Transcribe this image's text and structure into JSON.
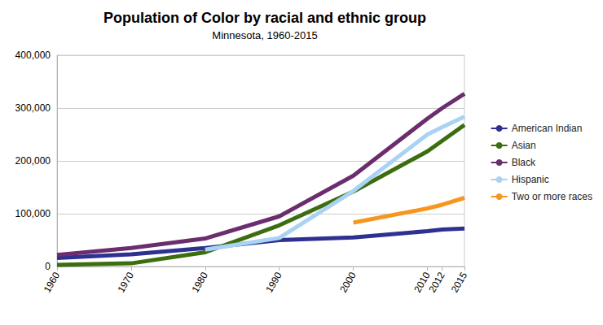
{
  "chart_data": {
    "type": "line",
    "title": "Population of Color by racial and ethnic group",
    "subtitle": "Minnesota, 1960-2015",
    "x": [
      1960,
      1970,
      1980,
      1990,
      2000,
      2010,
      2012,
      2015
    ],
    "xlim": [
      1960,
      2015
    ],
    "xticks": [
      1960,
      1970,
      1980,
      1990,
      2000,
      2010,
      2012,
      2015
    ],
    "ylim": [
      0,
      400000
    ],
    "yticks": [
      0,
      {
        "value": 100000,
        "label": "100,000"
      },
      {
        "value": 200000,
        "label": "200,000"
      },
      {
        "value": 300000,
        "label": "300,000"
      },
      {
        "value": 400000,
        "label": "400,000"
      }
    ],
    "grid": true,
    "legend": "right",
    "series": [
      {
        "name": "American Indian",
        "color": "#2e3192",
        "values": [
          16000,
          23000,
          35000,
          50000,
          55000,
          67000,
          70000,
          72000
        ]
      },
      {
        "name": "Asian",
        "color": "#3c6e0f",
        "values": [
          3000,
          6000,
          27000,
          78000,
          142000,
          218000,
          238000,
          268000
        ]
      },
      {
        "name": "Black",
        "color": "#6b2d6e",
        "values": [
          22000,
          35000,
          53000,
          95000,
          172000,
          280000,
          300000,
          327000
        ]
      },
      {
        "name": "Hispanic",
        "color": "#a9d2f3",
        "values": [
          null,
          null,
          32000,
          54000,
          143000,
          250000,
          264000,
          284000
        ]
      },
      {
        "name": "Two or more races",
        "color": "#f7961e",
        "values": [
          null,
          null,
          null,
          null,
          83000,
          110000,
          117000,
          130000
        ]
      }
    ]
  }
}
